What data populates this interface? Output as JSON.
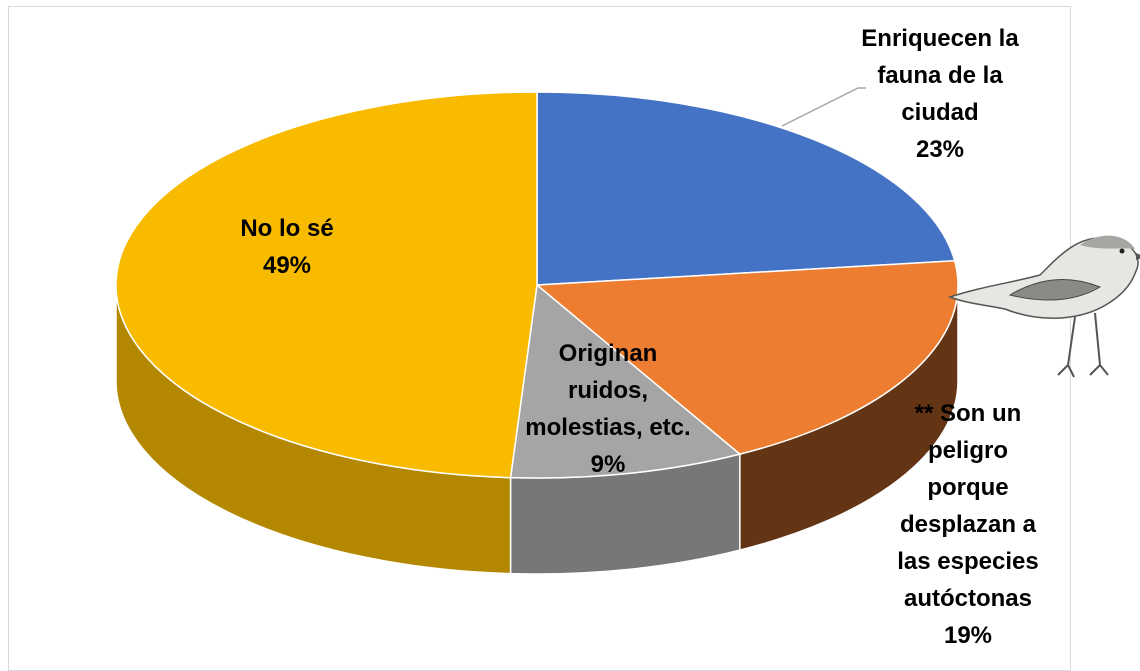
{
  "chart_data": {
    "type": "pie",
    "categories": [
      "Enriquecen la fauna de la ciudad",
      "** Son un peligro porque desplazan a las especies autóctonas",
      "Originan ruidos, molestias, etc.",
      "No lo sé"
    ],
    "values": [
      23,
      19,
      9,
      49
    ],
    "value_labels": [
      "23%",
      "19%",
      "9%",
      "49%"
    ],
    "colors": [
      "#4472c4",
      "#ed7d31",
      "#a5a5a5",
      "#f9bb00"
    ]
  }
}
